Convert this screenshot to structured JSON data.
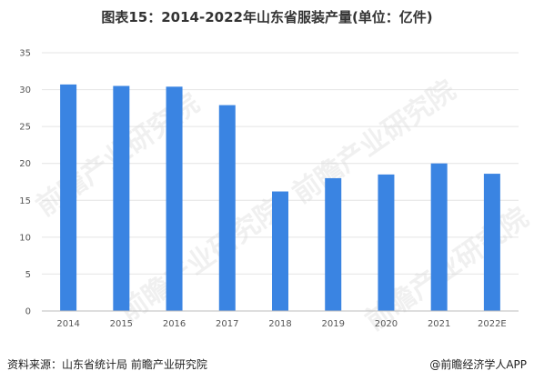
{
  "chart_data": {
    "type": "bar",
    "title": "图表15：2014-2022年山东省服装产量(单位：亿件)",
    "categories": [
      "2014",
      "2015",
      "2016",
      "2017",
      "2018",
      "2019",
      "2020",
      "2021",
      "2022E"
    ],
    "values": [
      30.7,
      30.5,
      30.4,
      27.9,
      16.2,
      18.0,
      18.5,
      20.0,
      18.6
    ],
    "ylim": [
      0,
      35
    ],
    "yticks": [
      "0",
      "5",
      "10",
      "15",
      "20",
      "25",
      "30",
      "35"
    ],
    "bar_color": "#3a84e2",
    "grid": true,
    "xlabel": "",
    "ylabel": ""
  },
  "footer": {
    "source": "资料来源：山东省统计局 前瞻产业研究院",
    "brand": "@前瞻经济学人APP"
  },
  "watermark": {
    "text": "前瞻产业研究院",
    "sub": "QIANZHAN INDUSTRY RESEARCH INSTITUTE"
  }
}
